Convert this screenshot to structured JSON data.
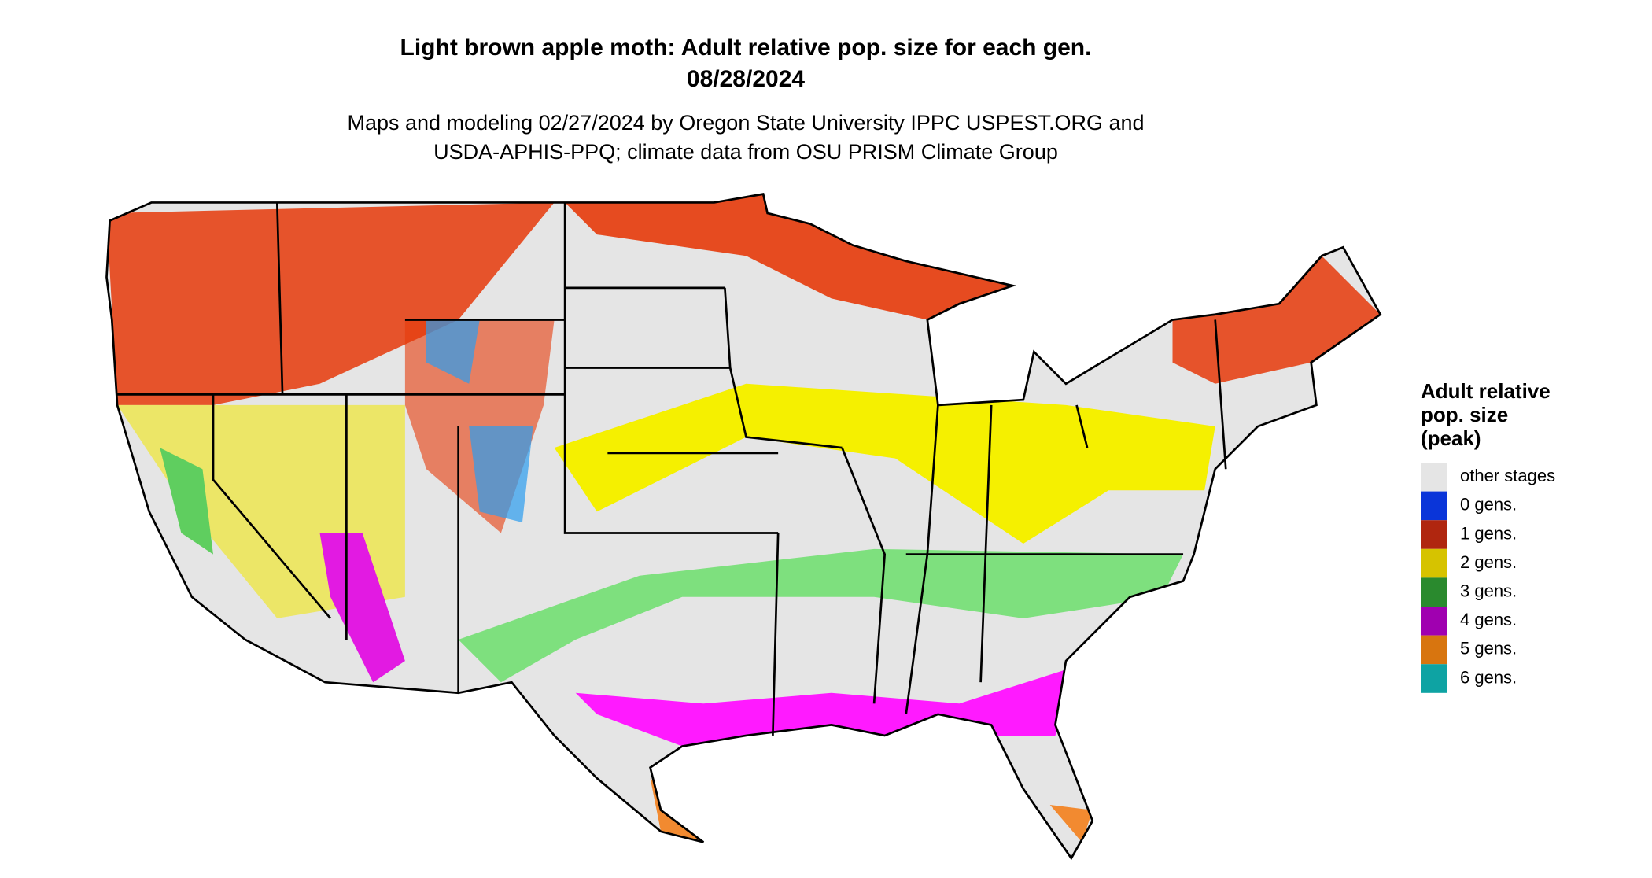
{
  "header": {
    "title": "Light brown apple moth: Adult relative pop. size for each gen.",
    "date": "08/28/2024",
    "subtitle": [
      "Maps and modeling 02/27/2024 by Oregon State University IPPC USPEST.ORG and",
      "USDA-APHIS-PPQ; climate data from OSU PRISM Climate Group"
    ]
  },
  "legend": {
    "title": [
      "Adult relative",
      "pop. size",
      "(peak)"
    ],
    "items": [
      {
        "label": "other stages",
        "color": "#e5e5e5"
      },
      {
        "label": "0 gens.",
        "color": "#0a35d9"
      },
      {
        "label": "1 gens.",
        "color": "#b0260f"
      },
      {
        "label": "2 gens.",
        "color": "#d6c300"
      },
      {
        "label": "3 gens.",
        "color": "#2a8a2e"
      },
      {
        "label": "4 gens.",
        "color": "#a000b0"
      },
      {
        "label": "5 gens.",
        "color": "#d8750f"
      },
      {
        "label": "6 gens.",
        "color": "#0ea3a3"
      }
    ]
  }
}
